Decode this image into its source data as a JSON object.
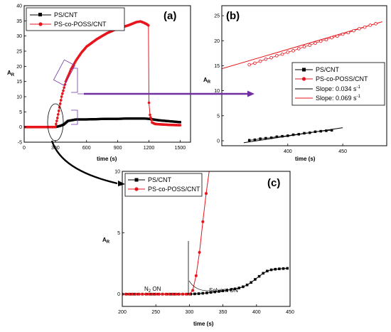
{
  "chart_data": [
    {
      "panel": "(a)",
      "type": "scatter",
      "xlabel": "time (s)",
      "ylabel_main": "A",
      "ylabel_sub": "R",
      "xlim": [
        0,
        1600
      ],
      "ylim": [
        -5,
        40
      ],
      "xticks": [
        0,
        300,
        600,
        900,
        1200,
        1500
      ],
      "yticks": [
        -5,
        0,
        5,
        10,
        15,
        20,
        25,
        30,
        35,
        40
      ],
      "legend_position": "top-left",
      "series": [
        {
          "name": "PS/CNT",
          "color": "#000000",
          "marker": "square",
          "points": [
            [
              0,
              0
            ],
            [
              300,
              0
            ],
            [
              340,
              0.3
            ],
            [
              380,
              0.8
            ],
            [
              420,
              2
            ],
            [
              500,
              2.5
            ],
            [
              600,
              2.5
            ],
            [
              700,
              2.6
            ],
            [
              800,
              2.7
            ],
            [
              900,
              2.7
            ],
            [
              1000,
              2.8
            ],
            [
              1100,
              2.8
            ],
            [
              1150,
              2.8
            ],
            [
              1200,
              2.7
            ],
            [
              1300,
              2.2
            ],
            [
              1400,
              1.9
            ],
            [
              1500,
              1.6
            ]
          ]
        },
        {
          "name": "PS-co-POSS/CNT",
          "color": "#e8141c",
          "marker": "circle",
          "points": [
            [
              0,
              0
            ],
            [
              250,
              0
            ],
            [
              300,
              0
            ],
            [
              320,
              3
            ],
            [
              340,
              6.5
            ],
            [
              360,
              10
            ],
            [
              400,
              15
            ],
            [
              450,
              19
            ],
            [
              500,
              22
            ],
            [
              550,
              24.5
            ],
            [
              600,
              26.5
            ],
            [
              700,
              29
            ],
            [
              800,
              31
            ],
            [
              900,
              32.5
            ],
            [
              1000,
              33.5
            ],
            [
              1080,
              34.6
            ],
            [
              1120,
              34.8
            ],
            [
              1150,
              34.4
            ],
            [
              1180,
              33.9
            ],
            [
              1195,
              33.5
            ],
            [
              1200,
              8
            ],
            [
              1210,
              4
            ],
            [
              1230,
              1.5
            ],
            [
              1260,
              1
            ],
            [
              1300,
              0.9
            ],
            [
              1400,
              0.7
            ],
            [
              1500,
              0.6
            ]
          ]
        }
      ]
    },
    {
      "panel": "(b)",
      "type": "scatter",
      "xlabel": "time (s)",
      "ylabel_main": "A",
      "ylabel_sub": "R",
      "xlim": [
        340,
        490
      ],
      "ylim": [
        -1,
        27
      ],
      "xticks": [
        400,
        450
      ],
      "yticks": [
        0,
        5,
        10,
        15,
        20,
        25
      ],
      "legend_position": "middle-right",
      "legend": [
        {
          "label": "PS/CNT",
          "color": "#000000",
          "marker": "square"
        },
        {
          "label": "PS-co-POSS/CNT",
          "color": "#e8141c",
          "marker": "circle"
        },
        {
          "label_main": "Slope: 0.034 s",
          "label_sup": "-1",
          "color": "#000000",
          "marker": "line"
        },
        {
          "label_main": "Slope: 0.069 s",
          "label_sup": "-1",
          "color": "#e8141c",
          "marker": "line"
        }
      ],
      "series": [
        {
          "name": "PS/CNT",
          "color": "#000000",
          "marker": "square",
          "x": [
            365,
            370,
            375,
            380,
            385,
            390,
            395,
            400,
            405,
            410,
            415,
            420,
            425,
            430,
            435,
            440
          ],
          "y": [
            0.1,
            0.2,
            0.4,
            0.5,
            0.6,
            0.8,
            0.9,
            1.0,
            1.2,
            1.3,
            1.5,
            1.6,
            1.8,
            1.9,
            2.0,
            2.1
          ]
        },
        {
          "name": "PS-co-POSS/CNT",
          "color": "#e8141c",
          "marker": "circle",
          "x": [
            365,
            370,
            375,
            380,
            385,
            390,
            395,
            400,
            405,
            410,
            415,
            420,
            425,
            430,
            435,
            440,
            445,
            450,
            455,
            460,
            465,
            470,
            475,
            480
          ],
          "y": [
            15.2,
            15.5,
            15.9,
            16.3,
            16.6,
            17.0,
            17.3,
            17.7,
            18.0,
            18.4,
            18.8,
            19.1,
            19.5,
            19.9,
            20.2,
            20.6,
            20.9,
            21.3,
            21.6,
            22.0,
            22.4,
            22.7,
            23.1,
            23.4
          ]
        }
      ],
      "fits": [
        {
          "color": "#000000",
          "x": [
            360,
            450
          ],
          "y": [
            -0.4,
            2.6
          ]
        },
        {
          "color": "#e8141c",
          "x": [
            340,
            486
          ],
          "y": [
            14.4,
            23.8
          ]
        }
      ]
    },
    {
      "panel": "(c)",
      "type": "scatter",
      "xlabel": "time (s)",
      "ylabel_main": "A",
      "ylabel_sub": "R",
      "xlim": [
        200,
        450
      ],
      "ylim": [
        -1,
        10
      ],
      "xticks": [
        200,
        250,
        300,
        350,
        400,
        450
      ],
      "yticks": [
        0,
        5,
        10
      ],
      "legend_position": "top-left",
      "annotations": {
        "n2_main": "N",
        "n2_sub": "2",
        "n2_rest": " ON",
        "solvent": "Solvent ON"
      },
      "series": [
        {
          "name": "PS/CNT",
          "color": "#000000",
          "marker": "square",
          "x": [
            200,
            206,
            212,
            218,
            224,
            230,
            236,
            242,
            248,
            254,
            260,
            266,
            272,
            278,
            284,
            290,
            296,
            302,
            308,
            314,
            320,
            326,
            332,
            338,
            344,
            350,
            356,
            362,
            368,
            374,
            380,
            386,
            392,
            398,
            404,
            410,
            416,
            422,
            428,
            434,
            440,
            446
          ],
          "y": [
            0,
            0,
            0,
            0,
            0,
            0,
            0,
            0,
            0,
            0,
            0,
            0,
            0,
            0,
            0,
            0,
            0,
            0,
            0.02,
            0.04,
            0.07,
            0.1,
            0.14,
            0.18,
            0.22,
            0.27,
            0.32,
            0.37,
            0.43,
            0.5,
            0.6,
            0.75,
            0.95,
            1.2,
            1.45,
            1.7,
            1.88,
            1.98,
            2.03,
            2.06,
            2.08,
            2.1
          ]
        },
        {
          "name": "PS-co-POSS/CNT",
          "color": "#e8141c",
          "marker": "circle",
          "x": [
            200,
            205,
            210,
            215,
            220,
            225,
            230,
            235,
            240,
            245,
            250,
            255,
            260,
            265,
            270,
            275,
            280,
            285,
            290,
            295,
            300,
            305,
            310,
            315,
            320,
            325,
            330
          ],
          "y": [
            0,
            0,
            0,
            0,
            0,
            0,
            0,
            0,
            0,
            0,
            0,
            0,
            0,
            0,
            0,
            0,
            0,
            0,
            0,
            0,
            0,
            0.3,
            1.5,
            3.4,
            5.9,
            8.2,
            10.2
          ]
        }
      ]
    }
  ]
}
